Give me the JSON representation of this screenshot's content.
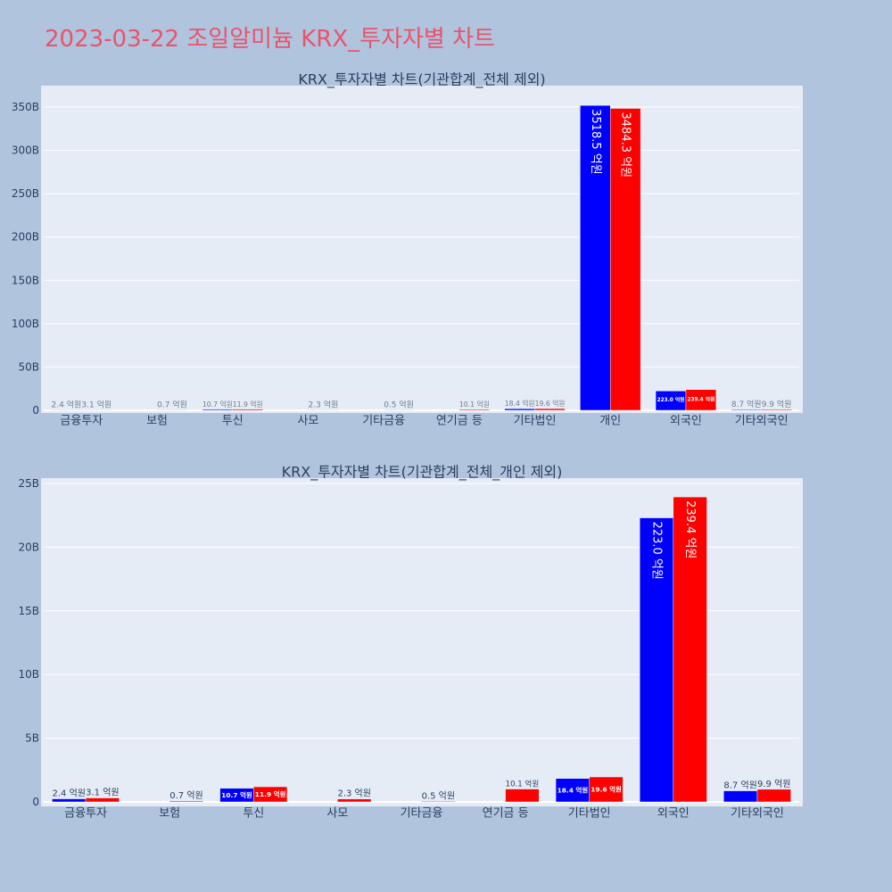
{
  "page": {
    "title": "2023-03-22 조일알미늄 KRX_투자자별 차트",
    "background_color": "#b0c4de",
    "title_color": "#e8546c"
  },
  "chart_data": [
    {
      "type": "bar",
      "title": "KRX_투자자별 차트(기관합계_전체 제외)",
      "xlabel": "",
      "ylabel": "",
      "unit": "억원",
      "categories": [
        "금융투자",
        "보험",
        "투신",
        "사모",
        "기타금융",
        "연기금 등",
        "기타법인",
        "개인",
        "외국인",
        "기타외국인"
      ],
      "series": [
        {
          "name": "",
          "color": "#0000ff",
          "values": [
            2.4,
            null,
            10.7,
            null,
            null,
            null,
            18.4,
            3518.5,
            223.0,
            8.7
          ],
          "labels": [
            "2.4 억원",
            "",
            "10.7 억원",
            "",
            "",
            "",
            "18.4 억원",
            "3518.5 억원",
            "223.0 억원",
            "8.7 억원"
          ],
          "text_position": [
            "outside",
            "",
            "outside",
            "",
            "",
            "",
            "outside",
            "inside-rotated",
            "inside",
            "outside"
          ]
        },
        {
          "name": "",
          "color": "#ff0000",
          "values": [
            3.1,
            0.7,
            11.9,
            2.3,
            0.5,
            10.1,
            19.6,
            3484.3,
            239.4,
            9.9
          ],
          "labels": [
            "3.1 억원",
            "0.7 억원",
            "11.9 억원",
            "2.3 억원",
            "0.5 억원",
            "10.1 억원",
            "19.6 억원",
            "3484.3 억원",
            "239.4 억원",
            "9.9 억원"
          ],
          "text_position": [
            "outside",
            "outside",
            "outside",
            "outside",
            "outside",
            "outside",
            "outside",
            "inside-rotated",
            "inside",
            "outside"
          ]
        }
      ],
      "yticks": [
        {
          "value": 0,
          "label": "0"
        },
        {
          "value": 50,
          "label": "50B"
        },
        {
          "value": 100,
          "label": "100B"
        },
        {
          "value": 150,
          "label": "150B"
        },
        {
          "value": 200,
          "label": "200B"
        },
        {
          "value": 250,
          "label": "250B"
        },
        {
          "value": 300,
          "label": "300B"
        },
        {
          "value": 350,
          "label": "350B"
        }
      ],
      "ylim": [
        -3.1,
        374.7
      ],
      "grid": true,
      "legend": "none",
      "plot_bg": "#e5ecf6"
    },
    {
      "type": "bar",
      "title": "KRX_투자자별 차트(기관합계_전체_개인 제외)",
      "xlabel": "",
      "ylabel": "",
      "unit": "억원",
      "categories": [
        "금융투자",
        "보험",
        "투신",
        "사모",
        "기타금융",
        "연기금 등",
        "기타법인",
        "외국인",
        "기타외국인"
      ],
      "series": [
        {
          "name": "",
          "color": "#0000ff",
          "values": [
            2.4,
            null,
            10.7,
            null,
            null,
            null,
            18.4,
            223.0,
            8.7
          ],
          "labels": [
            "2.4 억원",
            "",
            "10.7 억원",
            "",
            "",
            "",
            "18.4 억원",
            "223.0 억원",
            "8.7 억원"
          ],
          "text_position": [
            "outside",
            "",
            "inside",
            "",
            "",
            "",
            "inside",
            "inside-rotated",
            "outside"
          ]
        },
        {
          "name": "",
          "color": "#ff0000",
          "values": [
            3.1,
            0.7,
            11.9,
            2.3,
            0.5,
            10.1,
            19.6,
            239.4,
            9.9
          ],
          "labels": [
            "3.1 억원",
            "0.7 억원",
            "11.9 억원",
            "2.3 억원",
            "0.5 억원",
            "10.1 억원",
            "19.6 억원",
            "239.4 억원",
            "9.9 억원"
          ],
          "text_position": [
            "outside",
            "outside",
            "inside",
            "outside",
            "outside",
            "outside",
            "inside",
            "inside-rotated",
            "outside"
          ]
        }
      ],
      "yticks": [
        {
          "value": 0,
          "label": "0"
        },
        {
          "value": 5,
          "label": "5B"
        },
        {
          "value": 10,
          "label": "10B"
        },
        {
          "value": 15,
          "label": "15B"
        },
        {
          "value": 20,
          "label": "20B"
        },
        {
          "value": 25,
          "label": "25B"
        }
      ],
      "ylim": [
        -0.35,
        25.42
      ],
      "grid": true,
      "legend": "none",
      "plot_bg": "#e5ecf6"
    }
  ]
}
